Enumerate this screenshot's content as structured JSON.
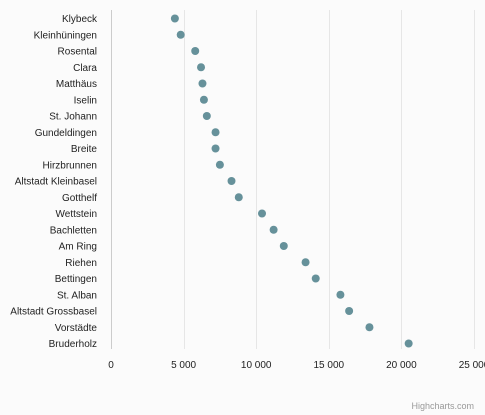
{
  "chart_data": {
    "type": "scatter",
    "categories": [
      "Klybeck",
      "Kleinhüningen",
      "Rosental",
      "Clara",
      "Matthäus",
      "Iselin",
      "St. Johann",
      "Gundeldingen",
      "Breite",
      "Hirzbrunnen",
      "Altstadt Kleinbasel",
      "Gotthelf",
      "Wettstein",
      "Bachletten",
      "Am Ring",
      "Riehen",
      "Bettingen",
      "St. Alban",
      "Altstadt Grossbasel",
      "Vorstädte",
      "Bruderholz"
    ],
    "values": [
      4400,
      4800,
      5800,
      6200,
      6300,
      6400,
      6600,
      7200,
      7200,
      7500,
      8300,
      8800,
      10400,
      11200,
      11900,
      13400,
      14100,
      15800,
      16400,
      17800,
      20500
    ],
    "xlim": [
      0,
      25000
    ],
    "x_ticks": [
      0,
      5000,
      10000,
      15000,
      20000,
      25000
    ],
    "x_tick_labels": [
      "0",
      "5 000",
      "10 000",
      "15 000",
      "20 000",
      "25 000"
    ],
    "grid": true,
    "point_color": "#66919a",
    "title": "",
    "xlabel": "",
    "ylabel": ""
  },
  "credit": "Highcharts.com"
}
